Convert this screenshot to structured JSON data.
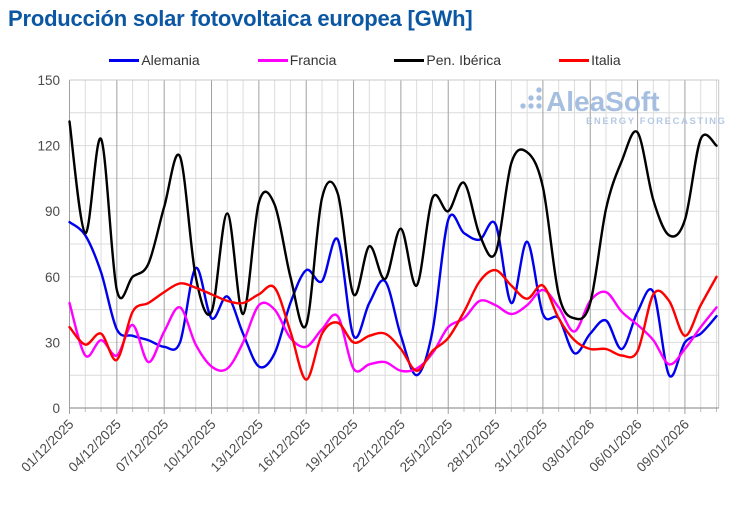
{
  "chart_data": {
    "type": "line",
    "title": "Producción solar fotovoltaica europea [GWh]",
    "xlabel": "",
    "ylabel": "",
    "ylim": [
      0,
      150
    ],
    "y_ticks": [
      0,
      30,
      60,
      90,
      120,
      150
    ],
    "y_minor_grid_step": 15,
    "grid": "on",
    "legend_position": "top",
    "n_points": 42,
    "x_tick_interval_days": 3,
    "x_tick_labels": [
      "01/12/2025",
      "04/12/2025",
      "07/12/2025",
      "10/12/2025",
      "13/12/2025",
      "16/12/2025",
      "19/12/2025",
      "22/12/2025",
      "25/12/2025",
      "28/12/2025",
      "31/12/2025",
      "03/01/2026",
      "06/01/2026",
      "09/01/2026"
    ],
    "series": [
      {
        "name": "Alemania",
        "color": "#0000ee",
        "values": [
          85,
          79,
          62,
          36,
          33,
          31,
          28,
          30,
          64,
          41,
          51,
          34,
          19,
          25,
          48,
          63,
          58,
          77,
          33,
          48,
          58,
          33,
          15,
          35,
          86,
          80,
          77,
          84,
          48,
          76,
          43,
          41,
          25,
          34,
          40,
          27,
          44,
          53,
          15,
          30,
          34,
          42
        ]
      },
      {
        "name": "Francia",
        "color": "#ff00ff",
        "values": [
          48,
          24,
          31,
          24,
          38,
          21,
          35,
          46,
          29,
          19,
          18,
          30,
          47,
          45,
          32,
          28,
          36,
          42,
          18,
          20,
          21,
          17,
          18,
          25,
          37,
          41,
          49,
          47,
          43,
          47,
          54,
          46,
          35,
          49,
          53,
          44,
          38,
          31,
          20,
          27,
          37,
          46
        ]
      },
      {
        "name": "Pen. Ibérica",
        "color": "#000000",
        "values": [
          131,
          80,
          123,
          54,
          60,
          66,
          92,
          115,
          60,
          44,
          89,
          43,
          94,
          93,
          60,
          38,
          96,
          98,
          52,
          74,
          59,
          82,
          56,
          96,
          90,
          103,
          79,
          71,
          112,
          117,
          101,
          52,
          41,
          48,
          91,
          113,
          126,
          95,
          79,
          86,
          123,
          120
        ]
      },
      {
        "name": "Italia",
        "color": "#ff0000",
        "values": [
          37,
          29,
          34,
          22,
          44,
          48,
          53,
          57,
          55,
          52,
          49,
          48,
          52,
          55,
          35,
          13,
          34,
          39,
          30,
          33,
          34,
          27,
          17,
          26,
          32,
          44,
          58,
          63,
          56,
          50,
          56,
          41,
          31,
          27,
          27,
          24,
          26,
          52,
          49,
          33,
          47,
          60
        ]
      }
    ],
    "watermark": {
      "text": "AleaSoft",
      "subtext": "ENERGY FORECASTING",
      "color": "#9db9dd",
      "subtext_color": "#aec4e2"
    },
    "colors": {
      "title": "#0b57a4",
      "axis_text": "#4a4a4a",
      "minor_grid": "#dcdcdc",
      "major_grid": "#a0a0a0",
      "border": "#c8c8c8",
      "axis_line": "#9a9a9a"
    }
  }
}
